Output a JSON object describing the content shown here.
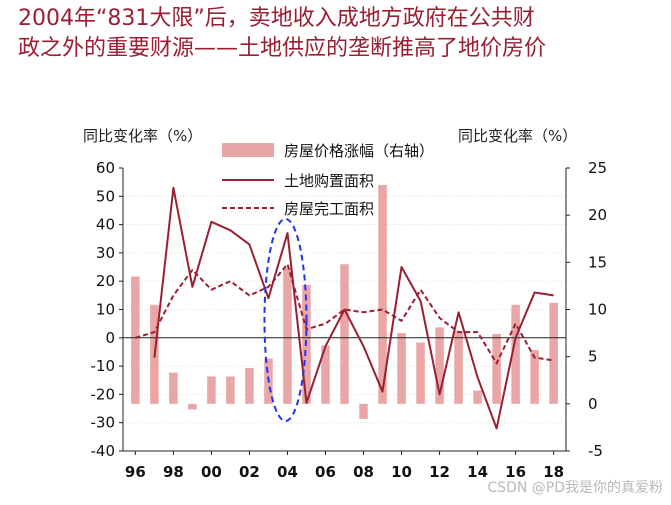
{
  "title": {
    "line1": "2004年“831大限”后，卖地收入成地方政府在公共财",
    "line2": "政之外的重要财源——土地供应的垄断推高了地价房价"
  },
  "watermark": "CSDN @PD我是你的真爱粉",
  "chart_data": {
    "type": "bar+line",
    "left_axis": {
      "label": "同比变化率（%）",
      "ylim": [
        -40,
        60
      ],
      "ticks": [
        60,
        50,
        40,
        30,
        20,
        10,
        0,
        -10,
        -20,
        -30,
        -40
      ]
    },
    "right_axis": {
      "label": "同比变化率（%）",
      "ylim": [
        -5,
        25
      ],
      "ticks": [
        25,
        20,
        15,
        10,
        5,
        0,
        -5
      ]
    },
    "x": [
      1996,
      1997,
      1998,
      1999,
      2000,
      2001,
      2002,
      2003,
      2004,
      2005,
      2006,
      2007,
      2008,
      2009,
      2010,
      2011,
      2012,
      2013,
      2014,
      2015,
      2016,
      2017,
      2018
    ],
    "x_ticklabels": [
      "96",
      "98",
      "00",
      "02",
      "04",
      "06",
      "08",
      "10",
      "12",
      "14",
      "16",
      "18"
    ],
    "legend": [
      {
        "name": "房屋价格涨幅（右轴）",
        "style": "bar",
        "color": "#e9a6a6"
      },
      {
        "name": "土地购置面积",
        "style": "solid",
        "color": "#9a1f33"
      },
      {
        "name": "房屋完工面积",
        "style": "dashed",
        "color": "#9a1f33"
      }
    ],
    "series": [
      {
        "name": "房屋价格涨幅（右轴）",
        "axis": "right",
        "type": "bar",
        "values": [
          13.5,
          10.5,
          3.3,
          -0.6,
          2.9,
          2.9,
          3.8,
          4.8,
          14.4,
          12.6,
          6.2,
          14.8,
          -1.6,
          23.2,
          7.5,
          6.5,
          8.1,
          7.7,
          1.4,
          7.4,
          10.5,
          5.7,
          10.7
        ]
      },
      {
        "name": "土地购置面积",
        "axis": "left",
        "type": "line",
        "values": [
          null,
          -7,
          53,
          18,
          41,
          38,
          33,
          14,
          37,
          -23,
          -3,
          10,
          -3,
          -19,
          25,
          13,
          -20,
          9,
          -14,
          -32,
          0,
          16,
          15
        ]
      },
      {
        "name": "房屋完工面积",
        "axis": "left",
        "type": "line-dashed",
        "values": [
          0,
          2,
          15,
          24,
          17,
          20,
          15,
          18,
          26,
          3,
          5,
          10,
          9,
          10,
          6,
          17,
          7,
          2,
          2,
          -9,
          5,
          -7,
          -8
        ]
      }
    ],
    "annotation": {
      "type": "dashed-ellipse",
      "color": "#2233ee",
      "around_x": 2004
    }
  }
}
